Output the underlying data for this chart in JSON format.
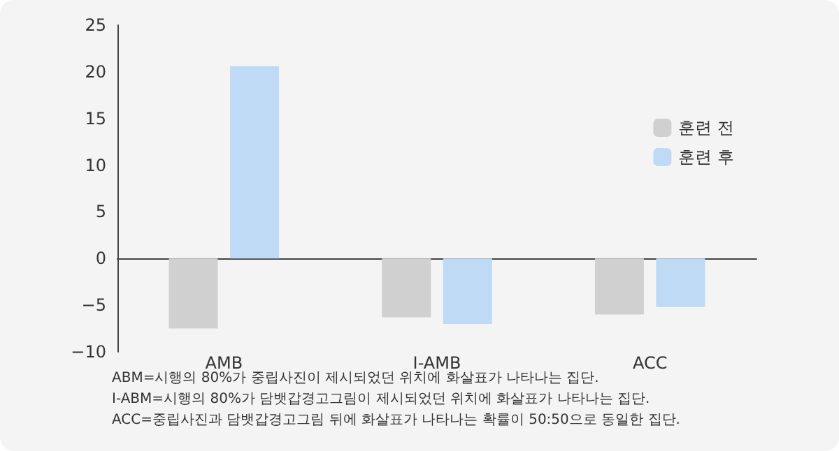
{
  "chart_data": {
    "type": "bar",
    "categories": [
      "AMB",
      "I-AMB",
      "ACC"
    ],
    "series": [
      {
        "name": "훈련 전",
        "color": "#d0d0d0",
        "values": [
          -7.5,
          -6.3,
          -6.0
        ]
      },
      {
        "name": "훈련 후",
        "color": "#bfdaf5",
        "values": [
          20.6,
          -7.0,
          -5.2
        ]
      }
    ],
    "ylim": [
      -10,
      25
    ],
    "yticks": [
      -10,
      -5,
      0,
      5,
      10,
      15,
      20,
      25
    ],
    "legend": "right",
    "annotations": [
      "ABM=시행의 80%가 중립사진이 제시되었던 위치에 화살표가 나타나는 집단.",
      "I-ABM=시행의 80%가 담뱃갑경고그림이 제시되었던 위치에 화살표가 나타나는 집단.",
      "ACC=중립사진과 담뱃갑경고그림 뒤에 화살표가 나타나는 확률이 50:50으로 동일한 집단."
    ]
  }
}
